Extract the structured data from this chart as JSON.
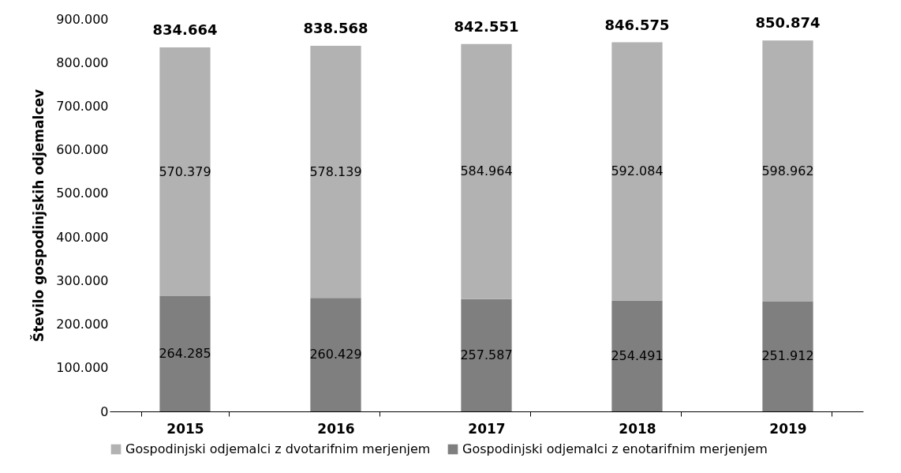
{
  "chart_data": {
    "type": "bar",
    "stacked": true,
    "ylabel": "Število gospodinjskih odjemalcev",
    "categories": [
      "2015",
      "2016",
      "2017",
      "2018",
      "2019"
    ],
    "series": [
      {
        "name": "Gospodinjski odjemalci z enotarifnim merjenjem",
        "color": "#7f7f7f",
        "values": [
          264285,
          260429,
          257587,
          254491,
          251912
        ],
        "value_labels": [
          "264.285",
          "260.429",
          "257.587",
          "254.491",
          "251.912"
        ]
      },
      {
        "name": "Gospodinjski odjemalci z dvotarifnim merjenjem",
        "color": "#b2b2b2",
        "values": [
          570379,
          578139,
          584964,
          592084,
          598962
        ],
        "value_labels": [
          "570.379",
          "578.139",
          "584.964",
          "592.084",
          "598.962"
        ]
      }
    ],
    "totals": [
      "834.664",
      "838.568",
      "842.551",
      "846.575",
      "850.874"
    ],
    "ylim": [
      0,
      900000
    ],
    "yticks": [
      0,
      {
        "value": 100000,
        "label": "100.000"
      },
      {
        "value": 200000,
        "label": "200.000"
      },
      {
        "value": 300000,
        "label": "300.000"
      },
      {
        "value": 400000,
        "label": "400.000"
      },
      {
        "value": 500000,
        "label": "500.000"
      },
      {
        "value": 600000,
        "label": "600.000"
      },
      {
        "value": 700000,
        "label": "700.000"
      },
      {
        "value": 800000,
        "label": "800.000"
      },
      {
        "value": 900000,
        "label": "900.000"
      }
    ],
    "grid": false,
    "legend": "bottom"
  }
}
